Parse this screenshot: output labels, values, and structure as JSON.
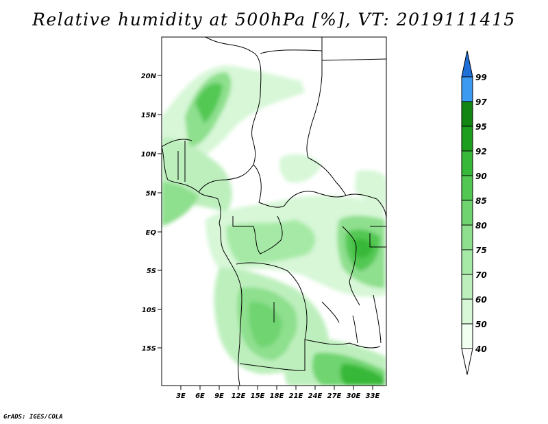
{
  "title": "Relative humidity at 500hPa [%], VT: 2019111415",
  "credit": "GrADS: IGES/COLA",
  "map": {
    "lat_ticks": [
      "20N",
      "15N",
      "10N",
      "5N",
      "EQ",
      "5S",
      "10S",
      "15S"
    ],
    "lon_ticks": [
      "3E",
      "6E",
      "9E",
      "12E",
      "15E",
      "18E",
      "21E",
      "24E",
      "27E",
      "30E",
      "33E"
    ]
  },
  "colorbar": {
    "levels": [
      "40",
      "50",
      "60",
      "70",
      "75",
      "80",
      "85",
      "90",
      "92",
      "95",
      "97",
      "99"
    ],
    "colors": [
      "#f0fff0",
      "#d7f7d7",
      "#bdefbd",
      "#a6e9a6",
      "#8edf8e",
      "#6fd46f",
      "#52c852",
      "#38b838",
      "#1e9e1e",
      "#128512",
      "#3c9bf0",
      "#1f6fd8",
      "#1952c4"
    ]
  }
}
